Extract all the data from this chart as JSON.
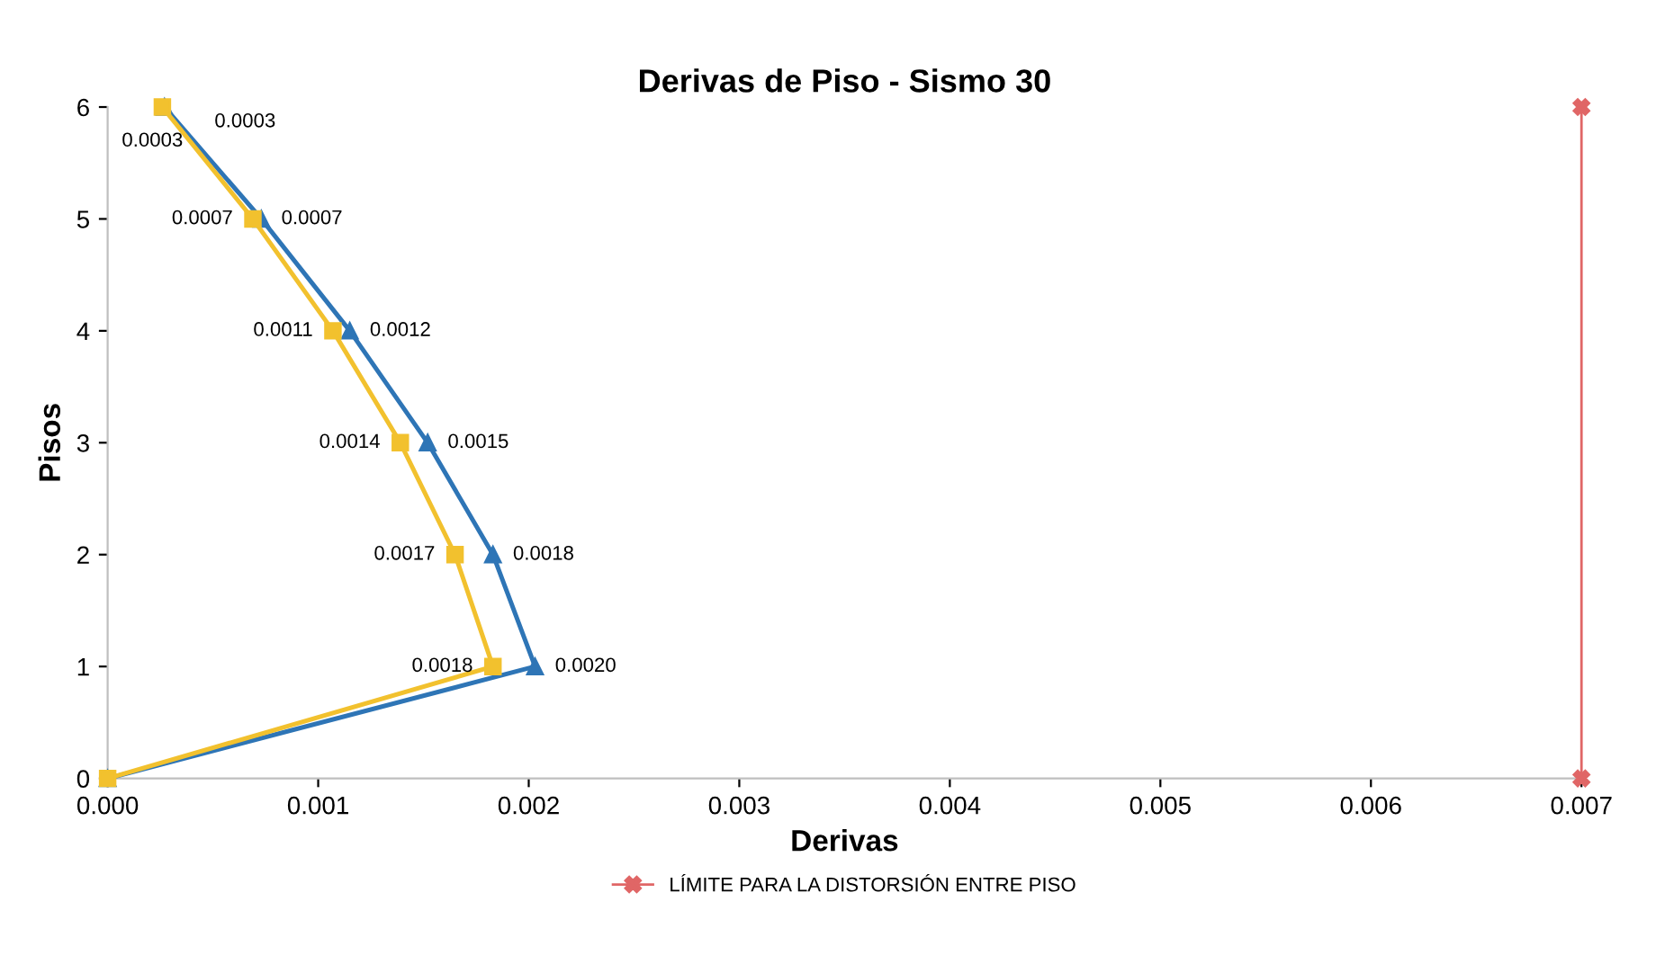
{
  "chart_data": {
    "type": "line",
    "orientation": "horizontal",
    "title": "Derivas de Piso - Sismo 30",
    "xlabel": "Derivas",
    "ylabel": "Pisos",
    "xlim": [
      0,
      0.007
    ],
    "xticks": [
      {
        "value": 0,
        "label": "0.000"
      },
      {
        "value": 0.001,
        "label": "0.001"
      },
      {
        "value": 0.002,
        "label": "0.002"
      },
      {
        "value": 0.003,
        "label": "0.003"
      },
      {
        "value": 0.004,
        "label": "0.004"
      },
      {
        "value": 0.005,
        "label": "0.005"
      },
      {
        "value": 0.006,
        "label": "0.006"
      },
      {
        "value": 0.007,
        "label": "0.007"
      }
    ],
    "ylim": [
      0,
      6
    ],
    "yticks": [
      0,
      1,
      2,
      3,
      4,
      5,
      6
    ],
    "grid": false,
    "legend": "bottom",
    "series": [
      {
        "color": "#2e75b6",
        "marker": "triangle",
        "x": [
          0,
          1,
          2,
          3,
          4,
          5,
          6
        ],
        "values": [
          0,
          0.00203,
          0.00183,
          0.00152,
          0.00115,
          0.00073,
          0.00027
        ],
        "value_labels": [
          null,
          "0.0020",
          "0.0018",
          "0.0015",
          "0.0012",
          "0.0007",
          "0.0003"
        ]
      },
      {
        "color": "#f2c12e",
        "marker": "square",
        "x": [
          0,
          1,
          2,
          3,
          4,
          5,
          6
        ],
        "values": [
          0,
          0.00183,
          0.00165,
          0.00139,
          0.00107,
          0.00069,
          0.00026
        ],
        "value_labels": [
          null,
          "0.0018",
          "0.0017",
          "0.0014",
          "0.0011",
          "0.0007",
          "0.0003"
        ]
      },
      {
        "name": "LÍMITE PARA LA DISTORSIÓN ENTRE PISO",
        "color": "#e06666",
        "marker": "cross",
        "x": [
          0,
          6
        ],
        "values": [
          0.007,
          0.007
        ]
      }
    ]
  }
}
